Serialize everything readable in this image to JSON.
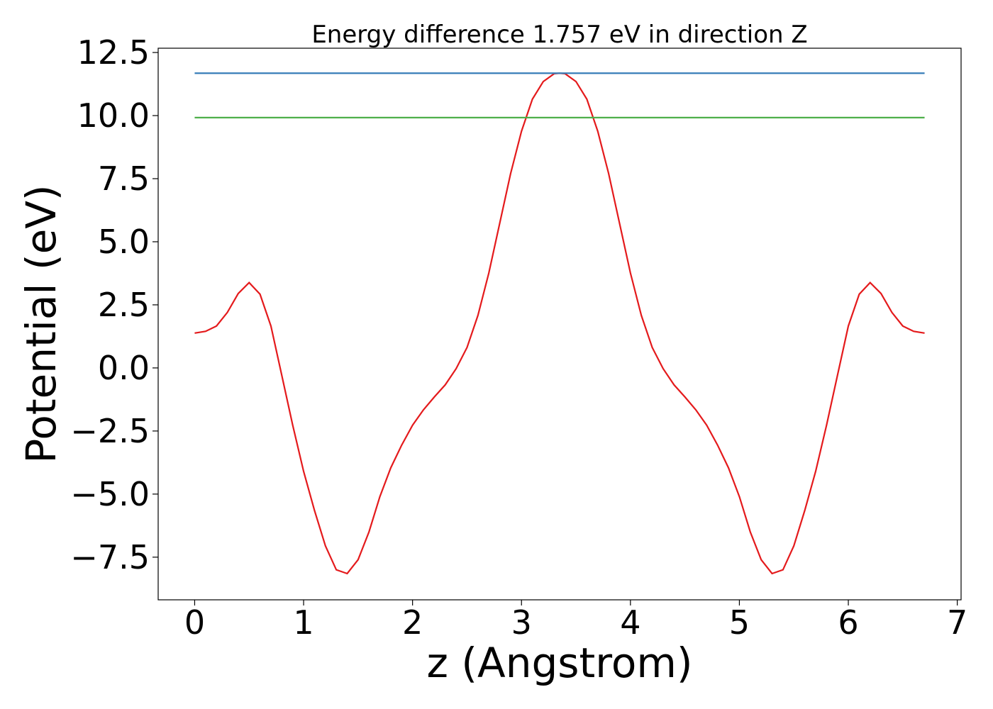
{
  "chart_data": {
    "type": "line",
    "title": "Energy difference 1.757 eV in direction Z",
    "xlabel": "z (Angstrom)",
    "ylabel": "Potential (eV)",
    "xlim": [
      -0.335,
      7.035
    ],
    "ylim": [
      -9.19,
      12.67
    ],
    "xticks": [
      0,
      1,
      2,
      3,
      4,
      5,
      6,
      7
    ],
    "yticks": [
      {
        "value": -7.5,
        "label": "−7.5"
      },
      {
        "value": -5,
        "label": "−5.0"
      },
      {
        "value": -2.5,
        "label": "−2.5"
      },
      {
        "value": 0,
        "label": "0.0"
      },
      {
        "value": 2.5,
        "label": "2.5"
      },
      {
        "value": 5,
        "label": "5.0"
      },
      {
        "value": 7.5,
        "label": "7.5"
      },
      {
        "value": 10,
        "label": "10.0"
      },
      {
        "value": 12.5,
        "label": "12.5"
      }
    ],
    "grid": false,
    "series": [
      {
        "color": "#e41a1c",
        "x": [
          0,
          0.1,
          0.2,
          0.3,
          0.4,
          0.5,
          0.6,
          0.7,
          0.8,
          0.9,
          1.0,
          1.1,
          1.2,
          1.3,
          1.4,
          1.5,
          1.6,
          1.7,
          1.8,
          1.9,
          2.0,
          2.1,
          2.2,
          2.3,
          2.4,
          2.5,
          2.6,
          2.7,
          2.8,
          2.9,
          3.0,
          3.1,
          3.2,
          3.3,
          3.35,
          3.4,
          3.5,
          3.6,
          3.7,
          3.8,
          3.9,
          4.0,
          4.1,
          4.2,
          4.3,
          4.4,
          4.5,
          4.6,
          4.7,
          4.8,
          4.9,
          5.0,
          5.1,
          5.2,
          5.3,
          5.4,
          5.5,
          5.6,
          5.7,
          5.8,
          5.9,
          6.0,
          6.1,
          6.2,
          6.3,
          6.4,
          6.5,
          6.6,
          6.7
        ],
        "values": [
          1.38,
          1.45,
          1.66,
          2.2,
          2.95,
          3.38,
          2.92,
          1.66,
          -0.3,
          -2.27,
          -4.1,
          -5.65,
          -7.05,
          -8.0,
          -8.15,
          -7.6,
          -6.5,
          -5.1,
          -3.96,
          -3.06,
          -2.27,
          -1.66,
          -1.15,
          -0.67,
          -0.03,
          0.81,
          2.08,
          3.76,
          5.73,
          7.7,
          9.38,
          10.65,
          11.35,
          11.66,
          11.68,
          11.66,
          11.35,
          10.65,
          9.38,
          7.7,
          5.73,
          3.76,
          2.08,
          0.81,
          -0.03,
          -0.67,
          -1.15,
          -1.66,
          -2.27,
          -3.06,
          -3.96,
          -5.1,
          -6.5,
          -7.6,
          -8.15,
          -8.0,
          -7.05,
          -5.65,
          -4.1,
          -2.27,
          -0.3,
          1.66,
          2.92,
          3.38,
          2.95,
          2.2,
          1.66,
          1.45,
          1.38
        ]
      },
      {
        "color": "#377eb8",
        "x": [
          0,
          6.7
        ],
        "values": [
          11.68,
          11.68
        ]
      },
      {
        "color": "#4daf4a",
        "x": [
          0,
          6.7
        ],
        "values": [
          9.92,
          9.92
        ]
      }
    ]
  }
}
